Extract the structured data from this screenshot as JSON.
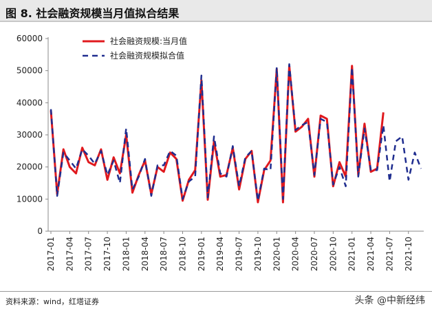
{
  "figure": {
    "title": "图 8. 社会融资规模当月值拟合结果",
    "source": "资料来源：wind，红塔证券",
    "watermark": "头条 @中新经纬"
  },
  "colors": {
    "actual": "#e0191e",
    "fitted": "#1f2d8f",
    "axis": "#888888"
  },
  "chart_data": {
    "type": "line",
    "title": "图 8. 社会融资规模当月值拟合结果",
    "xlabel": "",
    "ylabel": "",
    "ylim": [
      0,
      60000
    ],
    "yticks": [
      0,
      10000,
      20000,
      30000,
      40000,
      50000,
      60000
    ],
    "x_start": "2017-01",
    "xtick_labels": [
      "2017-01",
      "2017-04",
      "2017-07",
      "2017-10",
      "2018-01",
      "2018-04",
      "2018-07",
      "2018-10",
      "2019-01",
      "2019-04",
      "2019-07",
      "2019-10",
      "2020-01",
      "2020-04",
      "2020-07",
      "2020-10",
      "2021-01",
      "2021-04",
      "2021-07",
      "2021-10"
    ],
    "legend_position": "top-left",
    "grid": false,
    "series": [
      {
        "name": "社会融资规模:当月值",
        "style": "solid",
        "values": [
          37600,
          11500,
          25500,
          20000,
          18000,
          26000,
          21500,
          20500,
          25500,
          16000,
          23000,
          18000,
          30000,
          12000,
          17500,
          22000,
          11500,
          20000,
          18500,
          24500,
          22500,
          9500,
          16000,
          19000,
          47000,
          9800,
          28000,
          17000,
          17500,
          26000,
          13000,
          22500,
          25000,
          9000,
          19000,
          22000,
          50500,
          9000,
          51500,
          31000,
          32500,
          35000,
          17000,
          36000,
          35000,
          14000,
          21500,
          17000,
          51500,
          17500,
          33500,
          18500,
          19500,
          37000
        ]
      },
      {
        "name": "社会融资规模拟合值",
        "style": "dashed",
        "values": [
          38000,
          11000,
          24500,
          22000,
          19500,
          25500,
          23500,
          21000,
          25000,
          17500,
          22000,
          15000,
          32000,
          13000,
          17000,
          22500,
          11000,
          20500,
          20500,
          25000,
          23500,
          10000,
          15500,
          17000,
          48500,
          10500,
          29500,
          18000,
          17000,
          26500,
          14000,
          23000,
          25000,
          9500,
          19500,
          19000,
          51000,
          10000,
          52000,
          31500,
          33000,
          34000,
          17500,
          35000,
          34000,
          14500,
          20000,
          14000,
          51000,
          17000,
          32000,
          19000,
          19000,
          33000,
          15500,
          28000,
          29500,
          16000,
          24500,
          19500
        ]
      }
    ]
  }
}
